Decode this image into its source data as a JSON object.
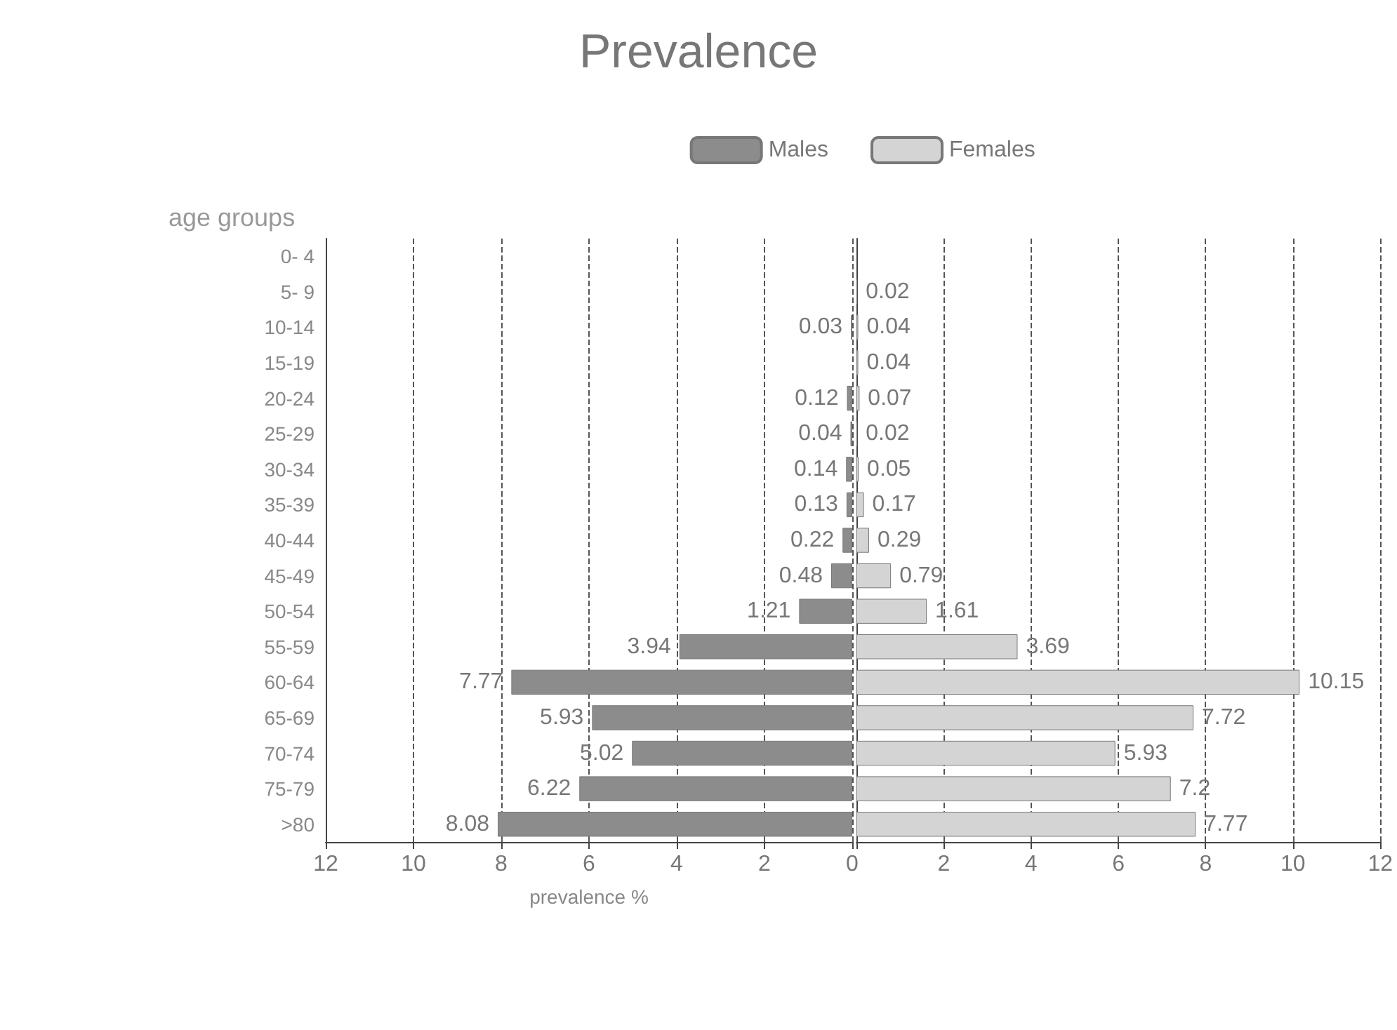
{
  "chart_data": [
    {
      "type": "bar",
      "orientation": "horizontal",
      "title": "Prevalence",
      "xlabel": "prevalence %",
      "ylabel": "age groups",
      "categories": [
        "0- 4",
        "5- 9",
        "10-14",
        "15-19",
        "20-24",
        "25-29",
        "30-34",
        "35-39",
        "40-44",
        "45-49",
        "50-54",
        "55-59",
        "60-64",
        "65-69",
        "70-74",
        "75-79",
        ">80"
      ],
      "series": [
        {
          "name": "Males",
          "color": "#8c8c8c",
          "values": [
            null,
            null,
            0.03,
            null,
            0.12,
            0.04,
            0.14,
            0.13,
            0.22,
            0.48,
            1.21,
            3.94,
            7.77,
            5.93,
            5.02,
            6.22,
            8.08
          ]
        }
      ],
      "data_labels": true,
      "xlim": [
        12,
        0
      ],
      "xticks": [
        12,
        10,
        8,
        6,
        4,
        2,
        0
      ],
      "grid": "x",
      "legend": "top"
    },
    {
      "type": "bar",
      "orientation": "horizontal",
      "categories": [
        null,
        null,
        null,
        null,
        null,
        null,
        null,
        null,
        null,
        null,
        null,
        null,
        null,
        null,
        null,
        null,
        null
      ],
      "series": [
        {
          "name": "Females",
          "color": "#d4d4d4",
          "values": [
            null,
            0.02,
            0.04,
            0.04,
            0.07,
            0.02,
            0.05,
            0.17,
            0.29,
            0.79,
            1.61,
            3.69,
            10.15,
            7.72,
            5.93,
            7.2,
            7.77
          ]
        }
      ],
      "data_labels": true,
      "xlim": [
        0,
        12
      ],
      "xticks": [
        {
          "value": 0,
          "label": null
        },
        2,
        4,
        6,
        8,
        10,
        12
      ],
      "grid": "x",
      "legend": "top",
      "tick_labels": "x"
    }
  ]
}
